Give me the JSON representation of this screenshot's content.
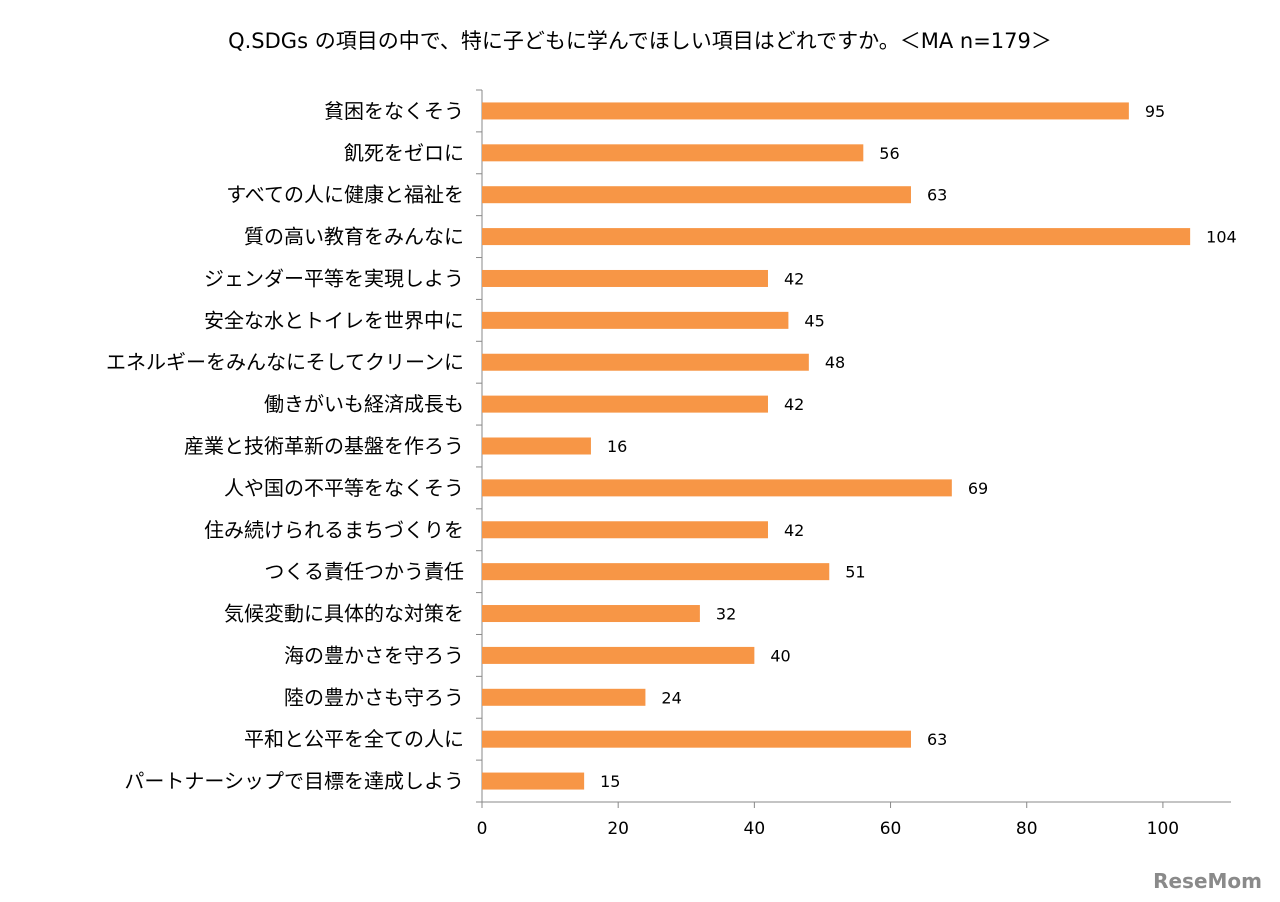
{
  "chart_data": {
    "type": "bar",
    "orientation": "horizontal",
    "title": "Q.SDGs の項目の中で、特に子どもに学んでほしい項目はどれですか。＜MA n=179＞",
    "categories": [
      "貧困をなくそう",
      "飢死をゼロに",
      "すべての人に健康と福祉を",
      "質の高い教育をみんなに",
      "ジェンダー平等を実現しよう",
      "安全な水とトイレを世界中に",
      "エネルギーをみんなにそしてクリーンに",
      "働きがいも経済成長も",
      "産業と技術革新の基盤を作ろう",
      "人や国の不平等をなくそう",
      "住み続けられるまちづくりを",
      "つくる責任つかう責任",
      "気候変動に具体的な対策を",
      "海の豊かさを守ろう",
      "陸の豊かさも守ろう",
      "平和と公平を全ての人に",
      "パートナーシップで目標を達成しよう"
    ],
    "values": [
      95,
      56,
      63,
      104,
      42,
      45,
      48,
      42,
      16,
      69,
      42,
      51,
      32,
      40,
      24,
      63,
      15
    ],
    "xlim": [
      0,
      110
    ],
    "xticks": [
      0,
      20,
      40,
      60,
      80,
      100
    ],
    "xlabel": "",
    "ylabel": "",
    "grid": false,
    "legend": "none",
    "data_labels": true,
    "bar_color": "#F79646"
  },
  "watermark": "ReseMom"
}
